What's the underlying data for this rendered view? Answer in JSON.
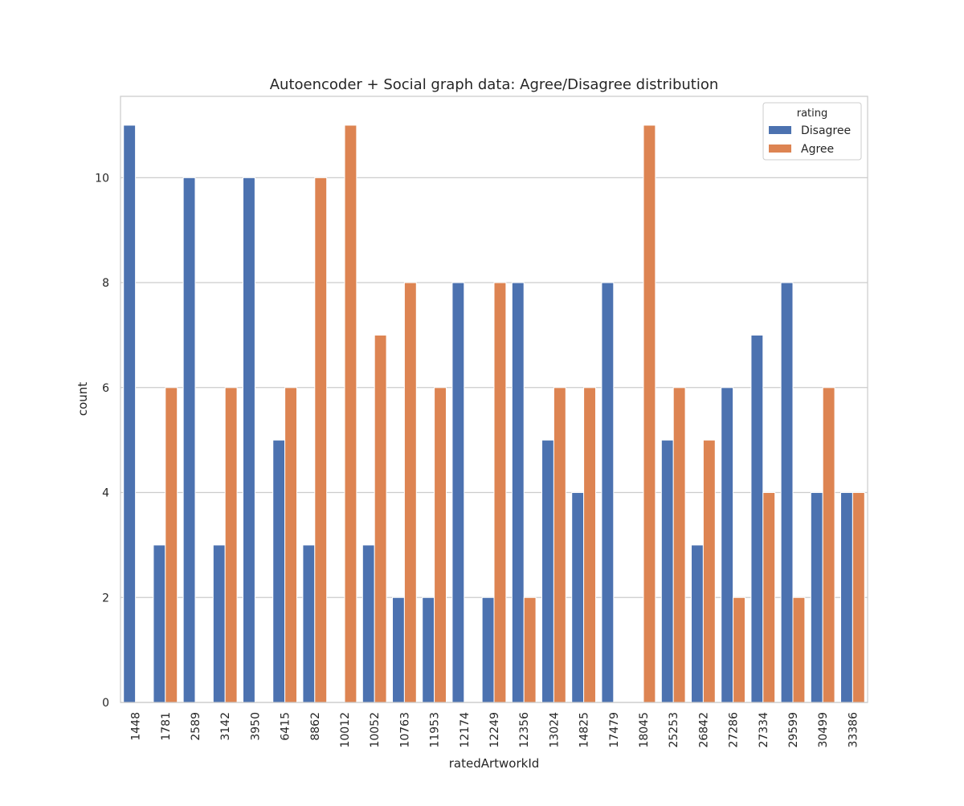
{
  "chart_data": {
    "type": "bar",
    "title": "Autoencoder + Social graph data: Agree/Disagree distribution",
    "xlabel": "ratedArtworkId",
    "ylabel": "count",
    "ylim": [
      0,
      11.55
    ],
    "yticks": [
      0,
      2,
      4,
      6,
      8,
      10
    ],
    "grid": true,
    "legend": {
      "title": "rating",
      "placement": "top-right",
      "entries": [
        "Disagree",
        "Agree"
      ]
    },
    "categories": [
      "1448",
      "1781",
      "2589",
      "3142",
      "3950",
      "6415",
      "8862",
      "10012",
      "10052",
      "10763",
      "11953",
      "12174",
      "12249",
      "12356",
      "13024",
      "14825",
      "17479",
      "18045",
      "25253",
      "26842",
      "27286",
      "27334",
      "29599",
      "30499",
      "33386"
    ],
    "series": [
      {
        "name": "Disagree",
        "color": "#4c72b0",
        "values": [
          11,
          3,
          10,
          3,
          10,
          5,
          3,
          0,
          3,
          2,
          2,
          8,
          2,
          8,
          5,
          4,
          8,
          0,
          5,
          3,
          6,
          7,
          8,
          4,
          4
        ]
      },
      {
        "name": "Agree",
        "color": "#dd8452",
        "values": [
          0,
          6,
          0,
          6,
          0,
          6,
          10,
          11,
          7,
          8,
          6,
          0,
          8,
          2,
          6,
          6,
          0,
          11,
          6,
          5,
          2,
          4,
          2,
          6,
          4
        ]
      }
    ]
  }
}
